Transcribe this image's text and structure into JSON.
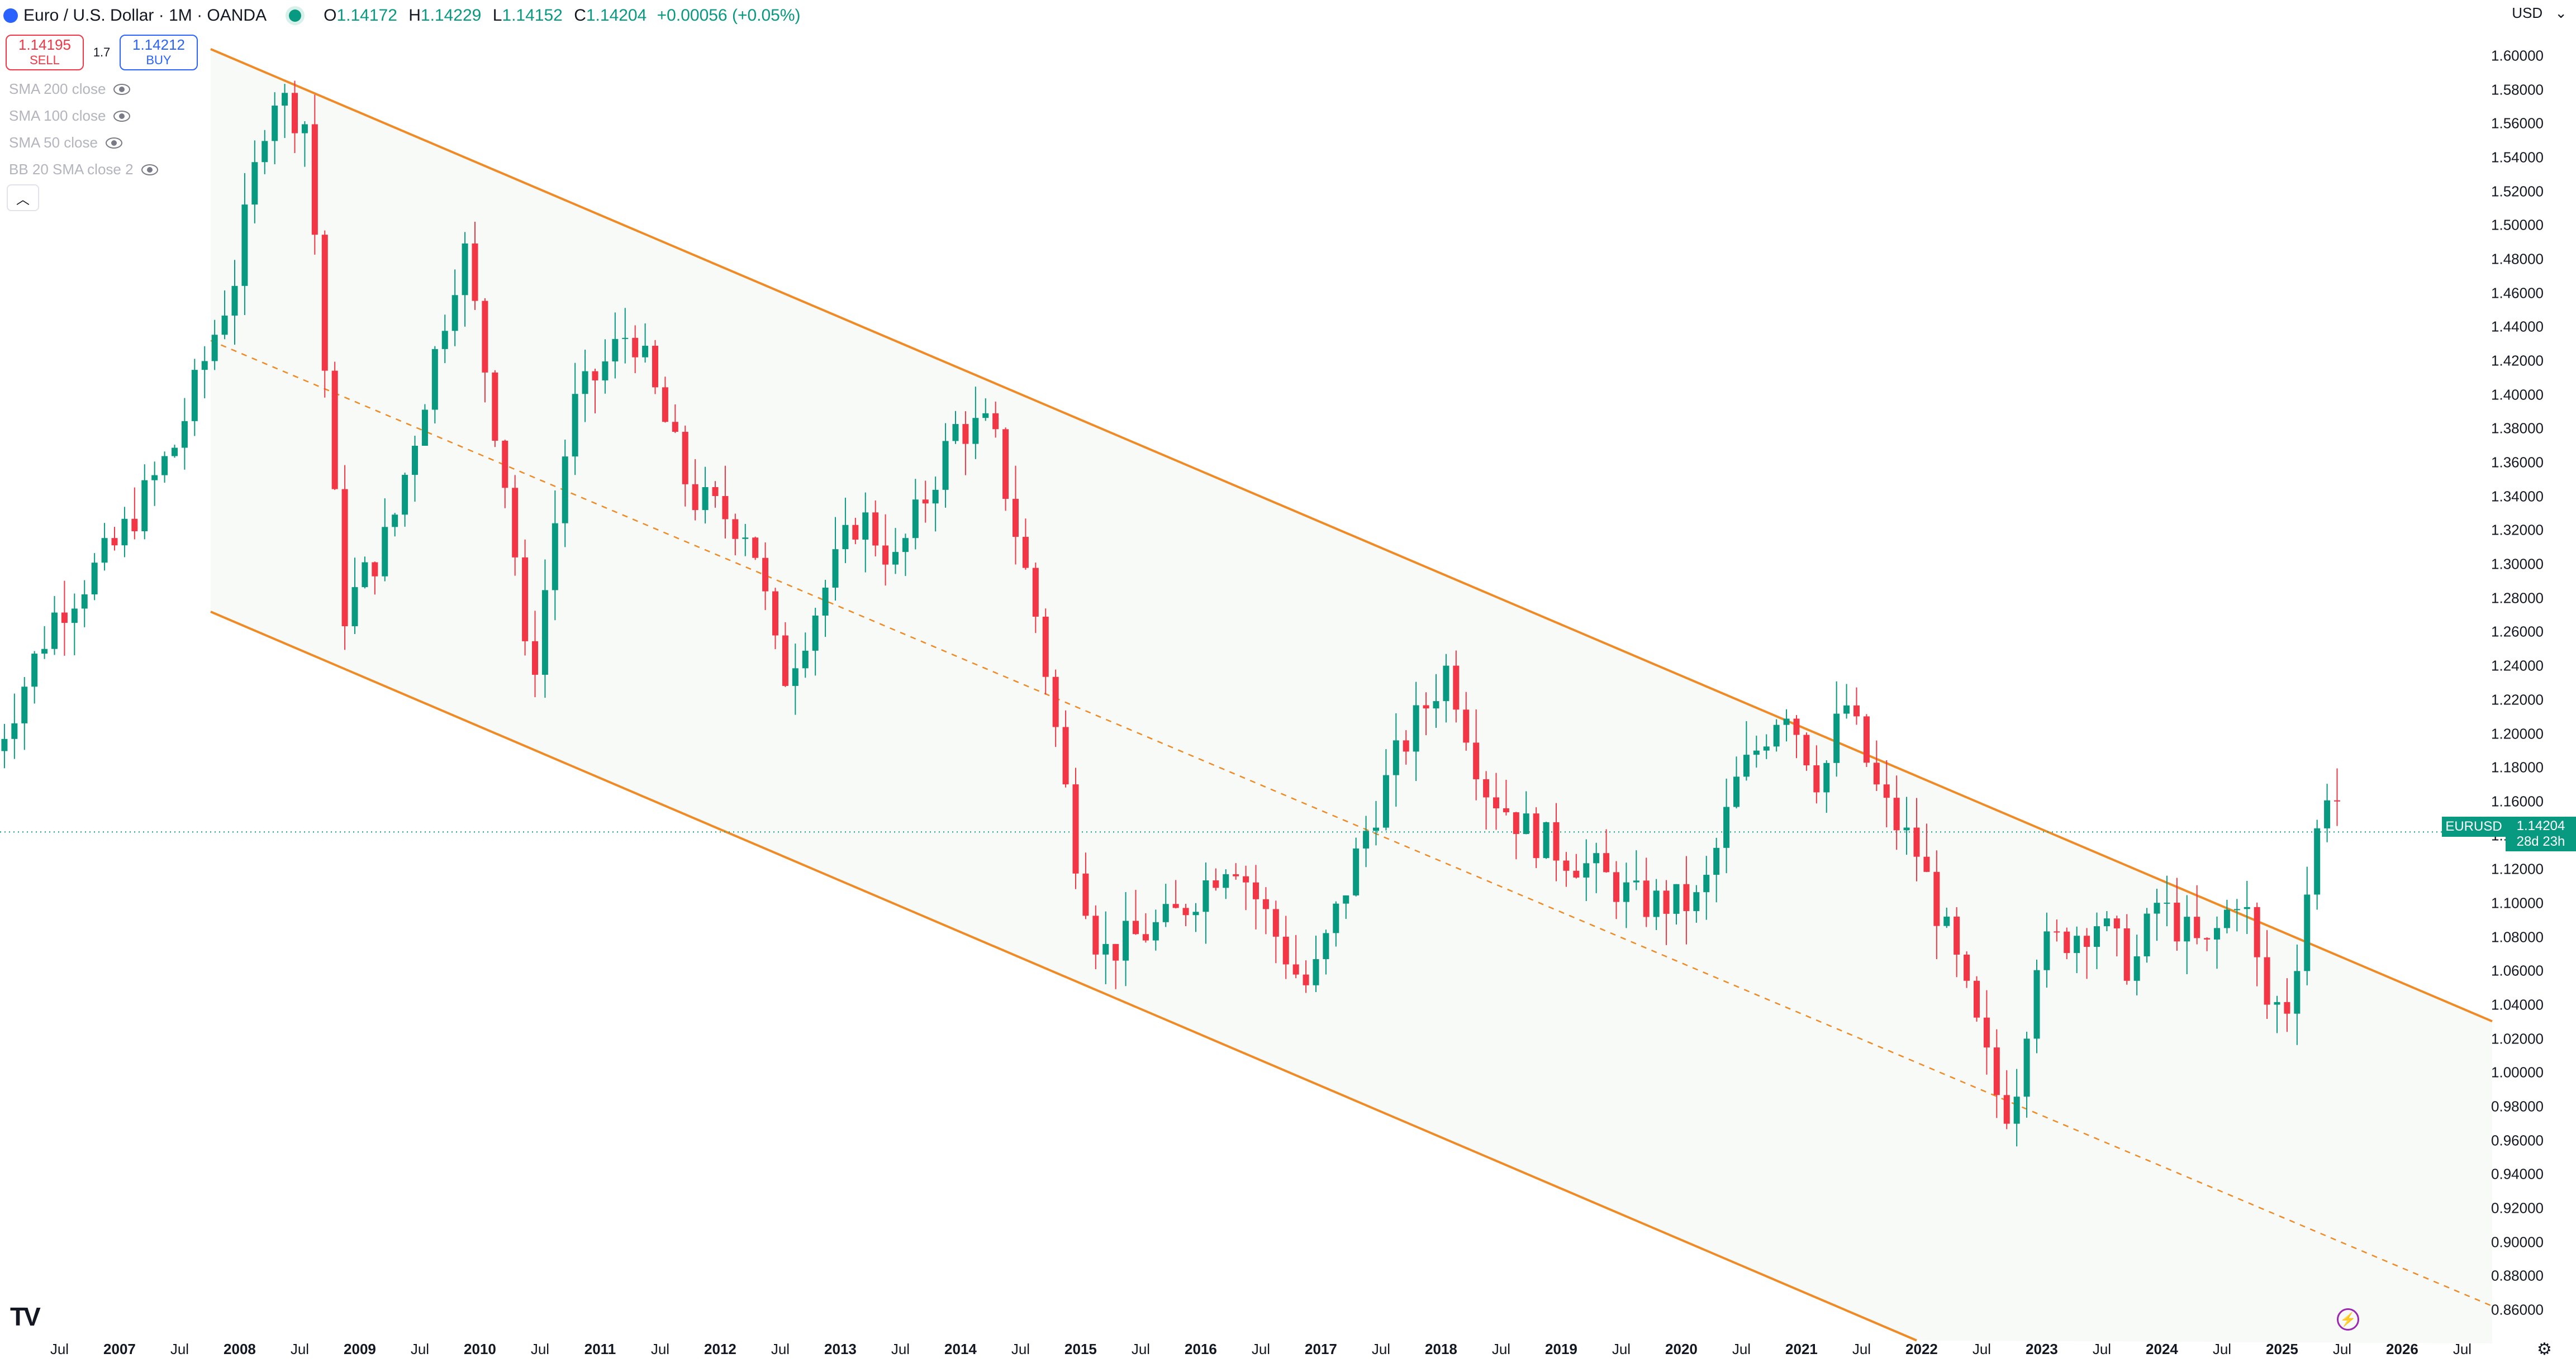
{
  "header": {
    "title": "Euro / U.S. Dollar · 1M · OANDA",
    "ohlc": {
      "o_label": "O",
      "o": "1.14172",
      "h_label": "H",
      "h": "1.14229",
      "l_label": "L",
      "l": "1.14152",
      "c_label": "C",
      "c": "1.14204",
      "change": "+0.00056 (+0.05%)"
    }
  },
  "trade": {
    "sell_price": "1.14195",
    "sell_label": "SELL",
    "spread": "1.7",
    "buy_price": "1.14212",
    "buy_label": "BUY"
  },
  "indicators": [
    {
      "label": "SMA 200 close"
    },
    {
      "label": "SMA 100 close"
    },
    {
      "label": "SMA 50 close"
    },
    {
      "label": "BB 20 SMA close 2"
    }
  ],
  "currency": "USD",
  "price_badge": {
    "symbol": "EURUSD",
    "price": "1.14204",
    "countdown": "28d 23h"
  },
  "colors": {
    "up": "#089981",
    "down": "#f23645",
    "channel": "#f08a24",
    "channel_fill": "#f7faf7",
    "last_price_line": "#089981"
  },
  "chart_data": {
    "type": "candlestick",
    "symbol": "EURUSD",
    "interval": "1M",
    "ylim": [
      0.84,
      1.61
    ],
    "y_ticks": [
      "1.60000",
      "1.58000",
      "1.56000",
      "1.54000",
      "1.52000",
      "1.50000",
      "1.48000",
      "1.46000",
      "1.44000",
      "1.42000",
      "1.40000",
      "1.38000",
      "1.36000",
      "1.34000",
      "1.32000",
      "1.30000",
      "1.28000",
      "1.26000",
      "1.24000",
      "1.22000",
      "1.20000",
      "1.18000",
      "1.16000",
      "1.14000",
      "1.12000",
      "1.10000",
      "1.08000",
      "1.06000",
      "1.04000",
      "1.02000",
      "1.00000",
      "0.98000",
      "0.96000",
      "0.94000",
      "0.92000",
      "0.90000",
      "0.88000",
      "0.86000"
    ],
    "x_ticks": [
      {
        "label": "Jul",
        "t": 2006.5,
        "year": false
      },
      {
        "label": "2007",
        "t": 2007,
        "year": true
      },
      {
        "label": "Jul",
        "t": 2007.5,
        "year": false
      },
      {
        "label": "2008",
        "t": 2008,
        "year": true
      },
      {
        "label": "Jul",
        "t": 2008.5,
        "year": false
      },
      {
        "label": "2009",
        "t": 2009,
        "year": true
      },
      {
        "label": "Jul",
        "t": 2009.5,
        "year": false
      },
      {
        "label": "2010",
        "t": 2010,
        "year": true
      },
      {
        "label": "Jul",
        "t": 2010.5,
        "year": false
      },
      {
        "label": "2011",
        "t": 2011,
        "year": true
      },
      {
        "label": "Jul",
        "t": 2011.5,
        "year": false
      },
      {
        "label": "2012",
        "t": 2012,
        "year": true
      },
      {
        "label": "Jul",
        "t": 2012.5,
        "year": false
      },
      {
        "label": "2013",
        "t": 2013,
        "year": true
      },
      {
        "label": "Jul",
        "t": 2013.5,
        "year": false
      },
      {
        "label": "2014",
        "t": 2014,
        "year": true
      },
      {
        "label": "Jul",
        "t": 2014.5,
        "year": false
      },
      {
        "label": "2015",
        "t": 2015,
        "year": true
      },
      {
        "label": "Jul",
        "t": 2015.5,
        "year": false
      },
      {
        "label": "2016",
        "t": 2016,
        "year": true
      },
      {
        "label": "Jul",
        "t": 2016.5,
        "year": false
      },
      {
        "label": "2017",
        "t": 2017,
        "year": true
      },
      {
        "label": "Jul",
        "t": 2017.5,
        "year": false
      },
      {
        "label": "2018",
        "t": 2018,
        "year": true
      },
      {
        "label": "Jul",
        "t": 2018.5,
        "year": false
      },
      {
        "label": "2019",
        "t": 2019,
        "year": true
      },
      {
        "label": "Jul",
        "t": 2019.5,
        "year": false
      },
      {
        "label": "2020",
        "t": 2020,
        "year": true
      },
      {
        "label": "Jul",
        "t": 2020.5,
        "year": false
      },
      {
        "label": "2021",
        "t": 2021,
        "year": true
      },
      {
        "label": "Jul",
        "t": 2021.5,
        "year": false
      },
      {
        "label": "2022",
        "t": 2022,
        "year": true
      },
      {
        "label": "Jul",
        "t": 2022.5,
        "year": false
      },
      {
        "label": "2023",
        "t": 2023,
        "year": true
      },
      {
        "label": "Jul",
        "t": 2023.5,
        "year": false
      },
      {
        "label": "2024",
        "t": 2024,
        "year": true
      },
      {
        "label": "Jul",
        "t": 2024.5,
        "year": false
      },
      {
        "label": "2025",
        "t": 2025,
        "year": true
      },
      {
        "label": "Jul",
        "t": 2025.5,
        "year": false
      },
      {
        "label": "2026",
        "t": 2026,
        "year": true
      },
      {
        "label": "Jul",
        "t": 2026.5,
        "year": false
      }
    ],
    "channel": {
      "upper": [
        [
          2007.8,
          1.604
        ],
        [
          2027.0,
          1.024
        ]
      ],
      "lower": [
        [
          2007.8,
          1.272
        ],
        [
          2022.0,
          0.842
        ]
      ],
      "mid": [
        [
          2007.8,
          1.432
        ],
        [
          2027.0,
          0.856
        ]
      ]
    },
    "last_price": 1.14204,
    "key_prices": [
      {
        "t": 2006.0,
        "close": 1.19
      },
      {
        "t": 2006.5,
        "close": 1.27
      },
      {
        "t": 2007.0,
        "close": 1.31
      },
      {
        "t": 2007.5,
        "close": 1.37
      },
      {
        "t": 2008.0,
        "close": 1.47
      },
      {
        "t": 2008.3,
        "close": 1.58
      },
      {
        "t": 2008.6,
        "close": 1.56
      },
      {
        "t": 2008.9,
        "close": 1.27
      },
      {
        "t": 2009.3,
        "close": 1.32
      },
      {
        "t": 2009.9,
        "close": 1.49
      },
      {
        "t": 2010.3,
        "close": 1.33
      },
      {
        "t": 2010.45,
        "close": 1.22
      },
      {
        "t": 2010.8,
        "close": 1.39
      },
      {
        "t": 2011.3,
        "close": 1.44
      },
      {
        "t": 2011.8,
        "close": 1.34
      },
      {
        "t": 2012.3,
        "close": 1.32
      },
      {
        "t": 2012.55,
        "close": 1.23
      },
      {
        "t": 2013.2,
        "close": 1.33
      },
      {
        "t": 2013.5,
        "close": 1.3
      },
      {
        "t": 2014.0,
        "close": 1.38
      },
      {
        "t": 2014.3,
        "close": 1.38
      },
      {
        "t": 2014.7,
        "close": 1.26
      },
      {
        "t": 2015.0,
        "close": 1.13
      },
      {
        "t": 2015.2,
        "close": 1.07
      },
      {
        "t": 2015.8,
        "close": 1.09
      },
      {
        "t": 2016.3,
        "close": 1.13
      },
      {
        "t": 2016.9,
        "close": 1.05
      },
      {
        "t": 2017.0,
        "close": 1.06
      },
      {
        "t": 2017.4,
        "close": 1.14
      },
      {
        "t": 2017.7,
        "close": 1.19
      },
      {
        "t": 2018.1,
        "close": 1.24
      },
      {
        "t": 2018.4,
        "close": 1.17
      },
      {
        "t": 2018.8,
        "close": 1.14
      },
      {
        "t": 2019.3,
        "close": 1.12
      },
      {
        "t": 2019.7,
        "close": 1.1
      },
      {
        "t": 2020.2,
        "close": 1.1
      },
      {
        "t": 2020.5,
        "close": 1.17
      },
      {
        "t": 2020.9,
        "close": 1.22
      },
      {
        "t": 2021.2,
        "close": 1.17
      },
      {
        "t": 2021.4,
        "close": 1.22
      },
      {
        "t": 2021.7,
        "close": 1.16
      },
      {
        "t": 2022.0,
        "close": 1.13
      },
      {
        "t": 2022.3,
        "close": 1.07
      },
      {
        "t": 2022.7,
        "close": 0.98
      },
      {
        "t": 2022.8,
        "close": 0.98
      },
      {
        "t": 2023.0,
        "close": 1.07
      },
      {
        "t": 2023.5,
        "close": 1.09
      },
      {
        "t": 2023.8,
        "close": 1.06
      },
      {
        "t": 2024.0,
        "close": 1.1
      },
      {
        "t": 2024.4,
        "close": 1.07
      },
      {
        "t": 2024.7,
        "close": 1.11
      },
      {
        "t": 2024.9,
        "close": 1.04
      },
      {
        "t": 2025.1,
        "close": 1.04
      },
      {
        "t": 2025.3,
        "close": 1.13
      },
      {
        "t": 2025.45,
        "close": 1.18
      },
      {
        "t": 2025.55,
        "close": 1.142
      }
    ]
  }
}
